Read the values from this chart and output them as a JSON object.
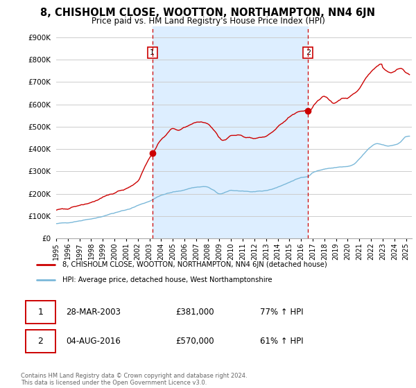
{
  "title": "8, CHISHOLM CLOSE, WOOTTON, NORTHAMPTON, NN4 6JN",
  "subtitle": "Price paid vs. HM Land Registry's House Price Index (HPI)",
  "legend_line1": "8, CHISHOLM CLOSE, WOOTTON, NORTHAMPTON, NN4 6JN (detached house)",
  "legend_line2": "HPI: Average price, detached house, West Northamptonshire",
  "annotation1_date": "28-MAR-2003",
  "annotation1_price": "£381,000",
  "annotation1_hpi": "77% ↑ HPI",
  "annotation2_date": "04-AUG-2016",
  "annotation2_price": "£570,000",
  "annotation2_hpi": "61% ↑ HPI",
  "footer": "Contains HM Land Registry data © Crown copyright and database right 2024.\nThis data is licensed under the Open Government Licence v3.0.",
  "hpi_color": "#7ab8d9",
  "price_color": "#cc0000",
  "vline_color": "#cc0000",
  "shade_color": "#ddeeff",
  "annotation_box_color": "#cc0000",
  "ylim": [
    0,
    950000
  ],
  "yticks": [
    0,
    100000,
    200000,
    300000,
    400000,
    500000,
    600000,
    700000,
    800000,
    900000
  ],
  "background_color": "#ffffff",
  "grid_color": "#cccccc",
  "sale1_x": 2003.25,
  "sale1_y": 381000,
  "sale2_x": 2016.6,
  "sale2_y": 570000,
  "xmin": 1995.0,
  "xmax": 2025.5
}
